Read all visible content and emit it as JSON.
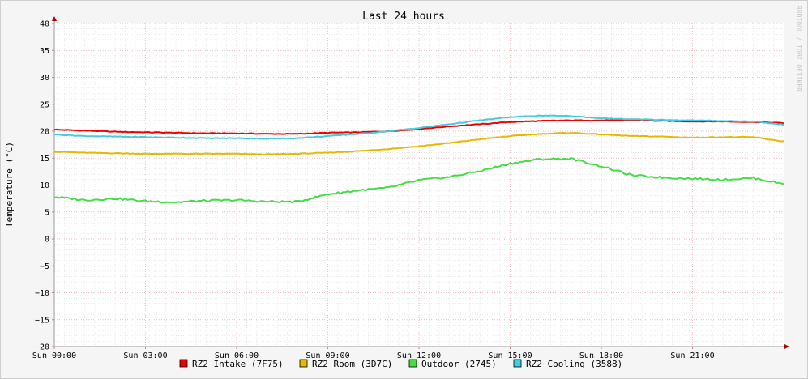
{
  "chart_data": {
    "type": "line",
    "title": "Last 24 hours",
    "ylabel": "Temperature (°C)",
    "watermark": "RRDTOOL / TOBI OETIKER",
    "ylim": [
      -20,
      40
    ],
    "yticks": [
      40,
      35,
      30,
      25,
      20,
      15,
      10,
      5,
      0,
      -5,
      -10,
      -15,
      -20
    ],
    "ytick_labels": [
      "40",
      "35",
      "30",
      "25",
      "20",
      "15",
      "10",
      "5",
      "0",
      "−5",
      "−10",
      "−15",
      "−20"
    ],
    "xlim": [
      0,
      24
    ],
    "xticks": [
      0,
      3,
      6,
      9,
      12,
      15,
      18,
      21
    ],
    "xtick_labels": [
      "Sun 00:00",
      "Sun 03:00",
      "Sun 06:00",
      "Sun 09:00",
      "Sun 12:00",
      "Sun 15:00",
      "Sun 18:00",
      "Sun 21:00"
    ],
    "grid": true,
    "legend_position": "bottom",
    "x": [
      0,
      1,
      2,
      3,
      4,
      5,
      6,
      7,
      8,
      9,
      10,
      11,
      12,
      13,
      14,
      15,
      16,
      17,
      18,
      19,
      20,
      21,
      22,
      23,
      24
    ],
    "series": [
      {
        "name": "RZ2 Intake (7F75)",
        "color": "#ee0000",
        "values": [
          20.3,
          20.1,
          19.9,
          19.8,
          19.7,
          19.6,
          19.6,
          19.5,
          19.5,
          19.7,
          19.8,
          20.0,
          20.4,
          20.9,
          21.3,
          21.7,
          21.9,
          22.0,
          22.0,
          22.0,
          21.9,
          21.8,
          21.8,
          21.7,
          21.5
        ]
      },
      {
        "name": "RZ2 Room (3D7C)",
        "color": "#e6b800",
        "values": [
          16.2,
          16.0,
          15.9,
          15.8,
          15.8,
          15.8,
          15.8,
          15.7,
          15.8,
          16.0,
          16.3,
          16.7,
          17.2,
          17.8,
          18.5,
          19.1,
          19.5,
          19.7,
          19.4,
          19.1,
          19.0,
          18.8,
          18.9,
          18.9,
          18.1
        ]
      },
      {
        "name": "Outdoor (2745)",
        "color": "#44dd44",
        "values": [
          7.8,
          7.2,
          7.5,
          7.0,
          6.8,
          7.1,
          7.2,
          6.9,
          6.9,
          8.3,
          9.0,
          9.5,
          10.9,
          11.5,
          12.6,
          14.0,
          14.8,
          14.9,
          13.5,
          11.8,
          11.4,
          11.2,
          11.0,
          11.3,
          10.2
        ]
      },
      {
        "name": "RZ2 Cooling (3588)",
        "color": "#44ccdd",
        "values": [
          19.4,
          19.1,
          19.0,
          18.9,
          18.8,
          18.7,
          18.7,
          18.6,
          18.7,
          19.1,
          19.5,
          20.0,
          20.6,
          21.3,
          22.0,
          22.6,
          22.9,
          22.8,
          22.4,
          22.2,
          22.1,
          22.0,
          21.9,
          21.8,
          21.2
        ]
      }
    ]
  }
}
